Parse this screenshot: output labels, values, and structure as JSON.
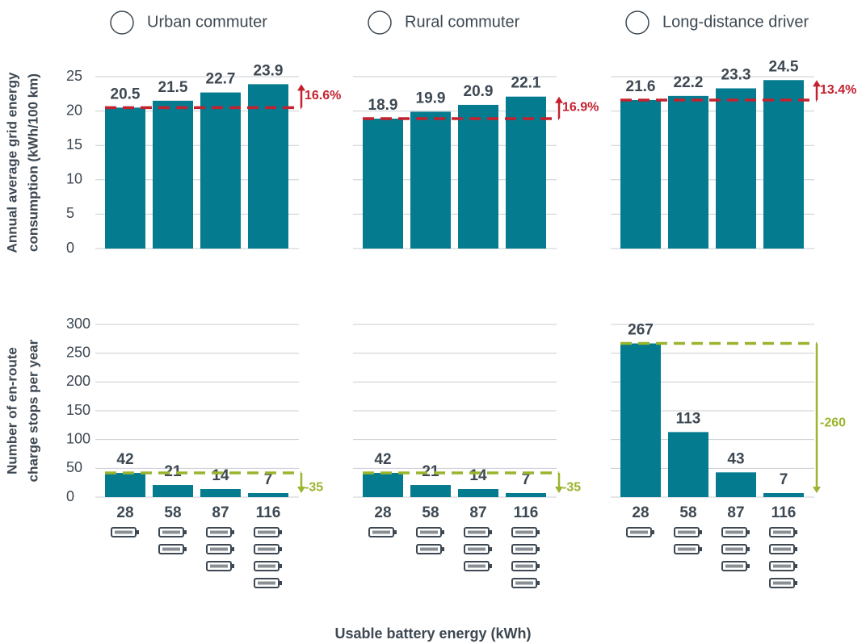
{
  "chart_data": [
    {
      "type": "bar",
      "title": "Urban commuter",
      "ylabel": [
        "Annual average grid energy",
        "consumption (kWh/100 km)"
      ],
      "values": [
        20.5,
        21.5,
        22.7,
        23.9
      ],
      "ylim": [
        0,
        25
      ],
      "yticks": [
        0,
        5,
        10,
        15,
        20,
        25
      ],
      "color": "#047b8f",
      "annotation": "16.6%",
      "annotation_color": "#c4212f",
      "grid": true
    },
    {
      "type": "bar",
      "title": "Rural commuter",
      "values": [
        18.9,
        19.9,
        20.9,
        22.1
      ],
      "ylim": [
        0,
        25
      ],
      "yticks": [
        0,
        5,
        10,
        15,
        20,
        25
      ],
      "color": "#047b8f",
      "annotation": "16.9%",
      "annotation_color": "#c4212f",
      "grid": true
    },
    {
      "type": "bar",
      "title": "Long-distance driver",
      "values": [
        21.6,
        22.2,
        23.3,
        24.5
      ],
      "ylim": [
        0,
        25
      ],
      "yticks": [
        0,
        5,
        10,
        15,
        20,
        25
      ],
      "color": "#047b8f",
      "annotation": "13.4%",
      "annotation_color": "#c4212f",
      "grid": true
    },
    {
      "type": "bar",
      "ylabel": [
        "Number of en-route",
        "charge stops per year"
      ],
      "categories": [
        "28",
        "58",
        "87",
        "116"
      ],
      "values": [
        42,
        21,
        14,
        7
      ],
      "ylim": [
        0,
        300
      ],
      "yticks": [
        0,
        50,
        100,
        150,
        200,
        250,
        300
      ],
      "color": "#047b8f",
      "annotation": "-35",
      "annotation_color": "#9ab52e",
      "grid": true
    },
    {
      "type": "bar",
      "categories": [
        "28",
        "58",
        "87",
        "116"
      ],
      "values": [
        42,
        21,
        14,
        7
      ],
      "ylim": [
        0,
        300
      ],
      "yticks": [
        0,
        50,
        100,
        150,
        200,
        250,
        300
      ],
      "color": "#047b8f",
      "annotation": "-35",
      "annotation_color": "#9ab52e",
      "grid": true
    },
    {
      "type": "bar",
      "categories": [
        "28",
        "58",
        "87",
        "116"
      ],
      "values": [
        267,
        113,
        43,
        7
      ],
      "ylim": [
        0,
        300
      ],
      "yticks": [
        0,
        50,
        100,
        150,
        200,
        250,
        300
      ],
      "color": "#047b8f",
      "annotation": "-260",
      "annotation_color": "#9ab52e",
      "grid": true
    }
  ],
  "xlabel": "Usable battery energy (kWh)"
}
